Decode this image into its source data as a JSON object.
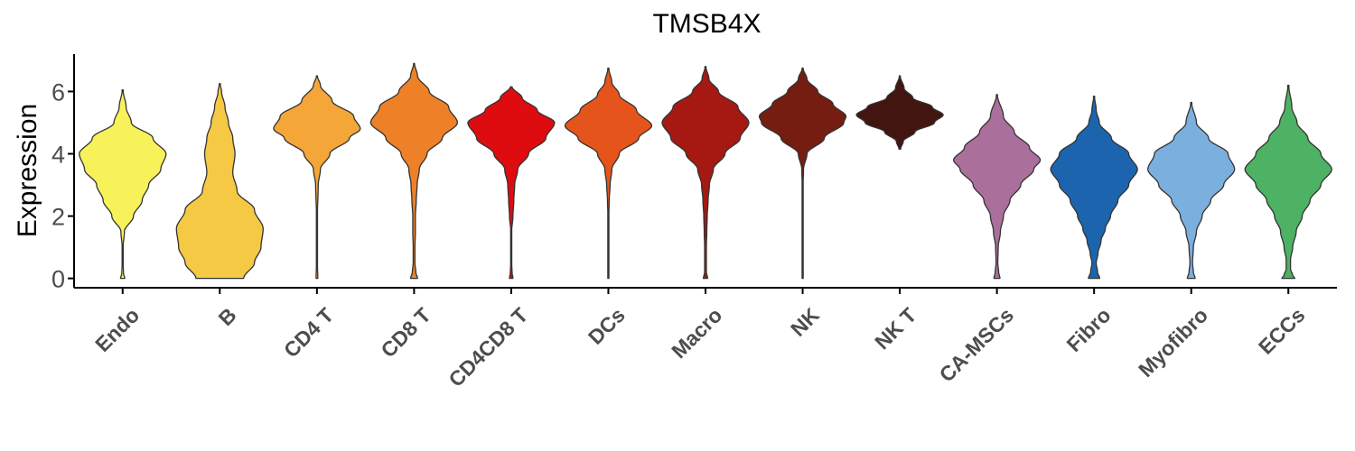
{
  "chart_data": {
    "type": "violin",
    "title": "TMSB4X",
    "xlabel": "",
    "ylabel": "Expression",
    "ylim": [
      -0.3,
      7.2
    ],
    "yticks": [
      0,
      2,
      4,
      6
    ],
    "grid": false,
    "legend": "none",
    "categories": [
      "Endo",
      "B",
      "CD4 T",
      "CD8 T",
      "CD4CD8 T",
      "DCs",
      "Macro",
      "NK",
      "NK T",
      "CA-MSCs",
      "Fibro",
      "Myofibro",
      "ECCs"
    ],
    "colors": [
      "#f7f25a",
      "#f6c944",
      "#f4a638",
      "#ee8127",
      "#de0c0f",
      "#e5551b",
      "#a51912",
      "#751d10",
      "#431510",
      "#ab6f9c",
      "#1c65ae",
      "#7bafde",
      "#4db264"
    ],
    "series": [
      {
        "category": "Endo",
        "min": 0.0,
        "max": 6.05,
        "profile": [
          [
            0,
            0.05
          ],
          [
            0.15,
            0.02
          ],
          [
            0.5,
            0.01
          ],
          [
            1.0,
            0.01
          ],
          [
            1.5,
            0.04
          ],
          [
            2.0,
            0.25
          ],
          [
            2.5,
            0.45
          ],
          [
            3.0,
            0.6
          ],
          [
            3.5,
            0.88
          ],
          [
            4.0,
            1.0
          ],
          [
            4.5,
            0.7
          ],
          [
            5.0,
            0.2
          ],
          [
            5.5,
            0.08
          ],
          [
            6.05,
            0.01
          ]
        ]
      },
      {
        "category": "B",
        "min": 0.0,
        "max": 6.25,
        "profile": [
          [
            0,
            0.55
          ],
          [
            0.5,
            0.8
          ],
          [
            1.0,
            0.95
          ],
          [
            1.6,
            1.0
          ],
          [
            2.2,
            0.8
          ],
          [
            2.8,
            0.4
          ],
          [
            3.4,
            0.3
          ],
          [
            4.0,
            0.35
          ],
          [
            4.5,
            0.3
          ],
          [
            5.0,
            0.2
          ],
          [
            5.5,
            0.12
          ],
          [
            6.0,
            0.04
          ],
          [
            6.25,
            0.01
          ]
        ]
      },
      {
        "category": "CD4 T",
        "min": 0.0,
        "max": 6.5,
        "profile": [
          [
            0,
            0.02
          ],
          [
            0.5,
            0.01
          ],
          [
            1.0,
            0.01
          ],
          [
            2.0,
            0.01
          ],
          [
            3.0,
            0.03
          ],
          [
            3.5,
            0.08
          ],
          [
            4.0,
            0.3
          ],
          [
            4.5,
            0.75
          ],
          [
            4.8,
            1.0
          ],
          [
            5.2,
            0.85
          ],
          [
            5.7,
            0.35
          ],
          [
            6.2,
            0.08
          ],
          [
            6.5,
            0.01
          ]
        ]
      },
      {
        "category": "CD8 T",
        "min": 0.0,
        "max": 6.9,
        "profile": [
          [
            0,
            0.08
          ],
          [
            0.2,
            0.04
          ],
          [
            0.5,
            0.02
          ],
          [
            1.0,
            0.02
          ],
          [
            1.5,
            0.03
          ],
          [
            2.0,
            0.03
          ],
          [
            2.5,
            0.05
          ],
          [
            3.0,
            0.07
          ],
          [
            3.5,
            0.12
          ],
          [
            4.0,
            0.3
          ],
          [
            4.5,
            0.65
          ],
          [
            5.0,
            1.0
          ],
          [
            5.5,
            0.8
          ],
          [
            6.0,
            0.35
          ],
          [
            6.5,
            0.08
          ],
          [
            6.9,
            0.01
          ]
        ]
      },
      {
        "category": "CD4CD8 T",
        "min": 0.0,
        "max": 6.15,
        "profile": [
          [
            0,
            0.04
          ],
          [
            0.2,
            0.02
          ],
          [
            0.5,
            0.01
          ],
          [
            1.0,
            0.01
          ],
          [
            1.5,
            0.01
          ],
          [
            2.0,
            0.04
          ],
          [
            2.5,
            0.06
          ],
          [
            3.0,
            0.08
          ],
          [
            3.5,
            0.15
          ],
          [
            4.0,
            0.4
          ],
          [
            4.5,
            0.8
          ],
          [
            5.0,
            1.0
          ],
          [
            5.4,
            0.6
          ],
          [
            5.8,
            0.25
          ],
          [
            6.15,
            0.02
          ]
        ]
      },
      {
        "category": "DCs",
        "min": 0.0,
        "max": 6.75,
        "profile": [
          [
            0,
            0.01
          ],
          [
            1.0,
            0.01
          ],
          [
            2.0,
            0.01
          ],
          [
            2.5,
            0.02
          ],
          [
            3.0,
            0.04
          ],
          [
            3.5,
            0.08
          ],
          [
            4.0,
            0.25
          ],
          [
            4.5,
            0.7
          ],
          [
            4.9,
            1.0
          ],
          [
            5.4,
            0.65
          ],
          [
            5.9,
            0.25
          ],
          [
            6.3,
            0.08
          ],
          [
            6.75,
            0.01
          ]
        ]
      },
      {
        "category": "Macro",
        "min": 0.0,
        "max": 6.8,
        "profile": [
          [
            0,
            0.05
          ],
          [
            0.2,
            0.02
          ],
          [
            0.5,
            0.02
          ],
          [
            1.0,
            0.02
          ],
          [
            1.5,
            0.03
          ],
          [
            2.0,
            0.04
          ],
          [
            2.5,
            0.06
          ],
          [
            3.0,
            0.09
          ],
          [
            3.5,
            0.18
          ],
          [
            4.0,
            0.45
          ],
          [
            4.5,
            0.8
          ],
          [
            5.0,
            1.0
          ],
          [
            5.5,
            0.75
          ],
          [
            6.0,
            0.3
          ],
          [
            6.4,
            0.08
          ],
          [
            6.8,
            0.01
          ]
        ]
      },
      {
        "category": "NK",
        "min": 0.0,
        "max": 6.75,
        "profile": [
          [
            0,
            0.01
          ],
          [
            1.0,
            0.01
          ],
          [
            2.0,
            0.01
          ],
          [
            3.0,
            0.01
          ],
          [
            3.5,
            0.02
          ],
          [
            4.0,
            0.1
          ],
          [
            4.5,
            0.5
          ],
          [
            5.0,
            0.95
          ],
          [
            5.2,
            1.0
          ],
          [
            5.6,
            0.7
          ],
          [
            6.0,
            0.35
          ],
          [
            6.4,
            0.1
          ],
          [
            6.75,
            0.01
          ]
        ]
      },
      {
        "category": "NK T",
        "min": 4.15,
        "max": 6.5,
        "profile": [
          [
            4.15,
            0.02
          ],
          [
            4.4,
            0.08
          ],
          [
            4.7,
            0.35
          ],
          [
            5.0,
            0.8
          ],
          [
            5.25,
            1.0
          ],
          [
            5.5,
            0.75
          ],
          [
            5.8,
            0.3
          ],
          [
            6.1,
            0.1
          ],
          [
            6.5,
            0.01
          ]
        ]
      },
      {
        "category": "CA-MSCs",
        "min": 0.0,
        "max": 5.9,
        "profile": [
          [
            0,
            0.07
          ],
          [
            0.2,
            0.04
          ],
          [
            0.5,
            0.02
          ],
          [
            1.0,
            0.03
          ],
          [
            1.5,
            0.08
          ],
          [
            2.0,
            0.15
          ],
          [
            2.5,
            0.3
          ],
          [
            3.0,
            0.55
          ],
          [
            3.5,
            0.85
          ],
          [
            3.8,
            1.0
          ],
          [
            4.2,
            0.75
          ],
          [
            4.7,
            0.4
          ],
          [
            5.2,
            0.15
          ],
          [
            5.9,
            0.01
          ]
        ]
      },
      {
        "category": "Fibro",
        "min": 0.0,
        "max": 5.85,
        "profile": [
          [
            0,
            0.13
          ],
          [
            0.2,
            0.08
          ],
          [
            0.5,
            0.05
          ],
          [
            0.8,
            0.09
          ],
          [
            1.2,
            0.16
          ],
          [
            1.6,
            0.26
          ],
          [
            2.0,
            0.38
          ],
          [
            2.5,
            0.55
          ],
          [
            3.0,
            0.8
          ],
          [
            3.5,
            1.0
          ],
          [
            4.0,
            0.8
          ],
          [
            4.5,
            0.4
          ],
          [
            5.0,
            0.12
          ],
          [
            5.4,
            0.05
          ],
          [
            5.85,
            0.01
          ]
        ]
      },
      {
        "category": "Myofibro",
        "min": 0.0,
        "max": 5.65,
        "profile": [
          [
            0,
            0.09
          ],
          [
            0.2,
            0.05
          ],
          [
            0.5,
            0.03
          ],
          [
            1.0,
            0.05
          ],
          [
            1.5,
            0.12
          ],
          [
            2.0,
            0.25
          ],
          [
            2.5,
            0.45
          ],
          [
            3.0,
            0.75
          ],
          [
            3.5,
            1.0
          ],
          [
            4.0,
            0.85
          ],
          [
            4.5,
            0.4
          ],
          [
            5.0,
            0.12
          ],
          [
            5.65,
            0.01
          ]
        ]
      },
      {
        "category": "ECCs",
        "min": 0.0,
        "max": 6.2,
        "profile": [
          [
            0,
            0.15
          ],
          [
            0.1,
            0.1
          ],
          [
            0.3,
            0.05
          ],
          [
            0.6,
            0.05
          ],
          [
            1.0,
            0.1
          ],
          [
            1.5,
            0.18
          ],
          [
            2.0,
            0.32
          ],
          [
            2.5,
            0.5
          ],
          [
            3.0,
            0.75
          ],
          [
            3.5,
            1.0
          ],
          [
            4.0,
            0.75
          ],
          [
            4.5,
            0.45
          ],
          [
            5.0,
            0.2
          ],
          [
            5.5,
            0.08
          ],
          [
            6.2,
            0.01
          ]
        ]
      }
    ]
  }
}
